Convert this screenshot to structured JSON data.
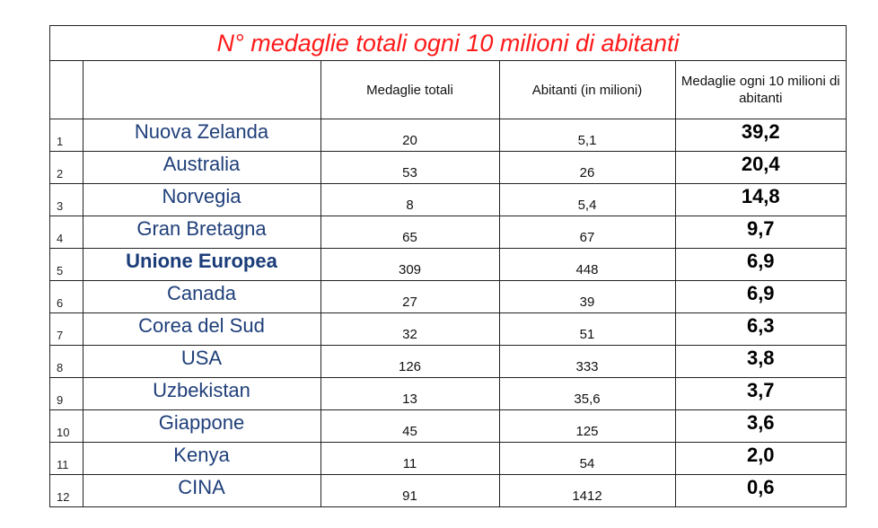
{
  "title": "N° medaglie totali ogni 10 milioni di abitanti",
  "columns": {
    "index": "",
    "country": "",
    "total_medals": "Medaglie totali",
    "population": "Abitanti (in milioni)",
    "rate": "Medaglie ogni 10 milioni di abitanti"
  },
  "rows": [
    {
      "index": "1",
      "country": "Nuova Zelanda",
      "total_medals": "20",
      "population": "5,1",
      "rate": "39,2",
      "bold": false
    },
    {
      "index": "2",
      "country": "Australia",
      "total_medals": "53",
      "population": "26",
      "rate": "20,4",
      "bold": false
    },
    {
      "index": "3",
      "country": "Norvegia",
      "total_medals": "8",
      "population": "5,4",
      "rate": "14,8",
      "bold": false
    },
    {
      "index": "4",
      "country": "Gran Bretagna",
      "total_medals": "65",
      "population": "67",
      "rate": "9,7",
      "bold": false
    },
    {
      "index": "5",
      "country": "Unione Europea",
      "total_medals": "309",
      "population": "448",
      "rate": "6,9",
      "bold": true
    },
    {
      "index": "6",
      "country": "Canada",
      "total_medals": "27",
      "population": "39",
      "rate": "6,9",
      "bold": false
    },
    {
      "index": "7",
      "country": "Corea del Sud",
      "total_medals": "32",
      "population": "51",
      "rate": "6,3",
      "bold": false
    },
    {
      "index": "8",
      "country": "USA",
      "total_medals": "126",
      "population": "333",
      "rate": "3,8",
      "bold": false
    },
    {
      "index": "9",
      "country": "Uzbekistan",
      "total_medals": "13",
      "population": "35,6",
      "rate": "3,7",
      "bold": false
    },
    {
      "index": "10",
      "country": "Giappone",
      "total_medals": "45",
      "population": "125",
      "rate": "3,6",
      "bold": false
    },
    {
      "index": "11",
      "country": "Kenya",
      "total_medals": "11",
      "population": "54",
      "rate": "2,0",
      "bold": false
    },
    {
      "index": "12",
      "country": "CINA",
      "total_medals": "91",
      "population": "1412",
      "rate": "0,6",
      "bold": false
    }
  ],
  "colors": {
    "title": "#ff1a1a",
    "country": "#1f3f7a",
    "border": "#222222"
  }
}
